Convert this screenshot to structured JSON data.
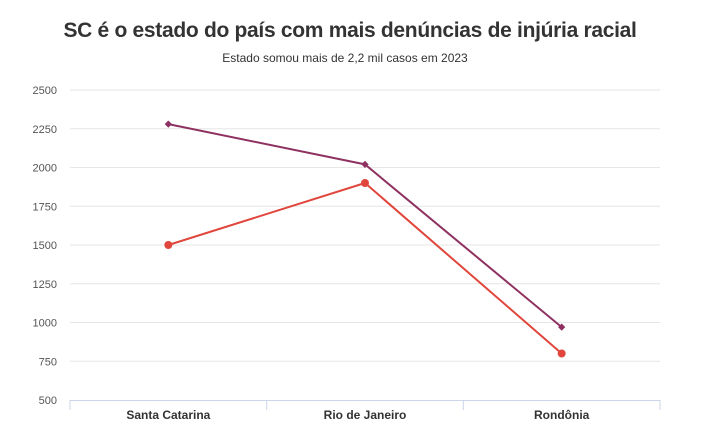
{
  "chart_data": {
    "type": "line",
    "title": "SC é o estado do país com mais denúncias de injúria racial",
    "subtitle": "Estado somou mais de 2,2 mil casos em 2023",
    "xlabel": "",
    "ylabel": "",
    "categories": [
      "Santa Catarina",
      "Rio de Janeiro",
      "Rondônia"
    ],
    "ylim": [
      500,
      2500
    ],
    "yticks": [
      500,
      750,
      1000,
      1250,
      1500,
      1750,
      2000,
      2250,
      2500
    ],
    "grid": true,
    "legend": "none",
    "series": [
      {
        "values": [
          2280,
          2020,
          970
        ],
        "color": "#8e3160",
        "marker": "diamond"
      },
      {
        "values": [
          1500,
          1900,
          800
        ],
        "color": "#e0463c",
        "marker": "circle"
      }
    ]
  }
}
